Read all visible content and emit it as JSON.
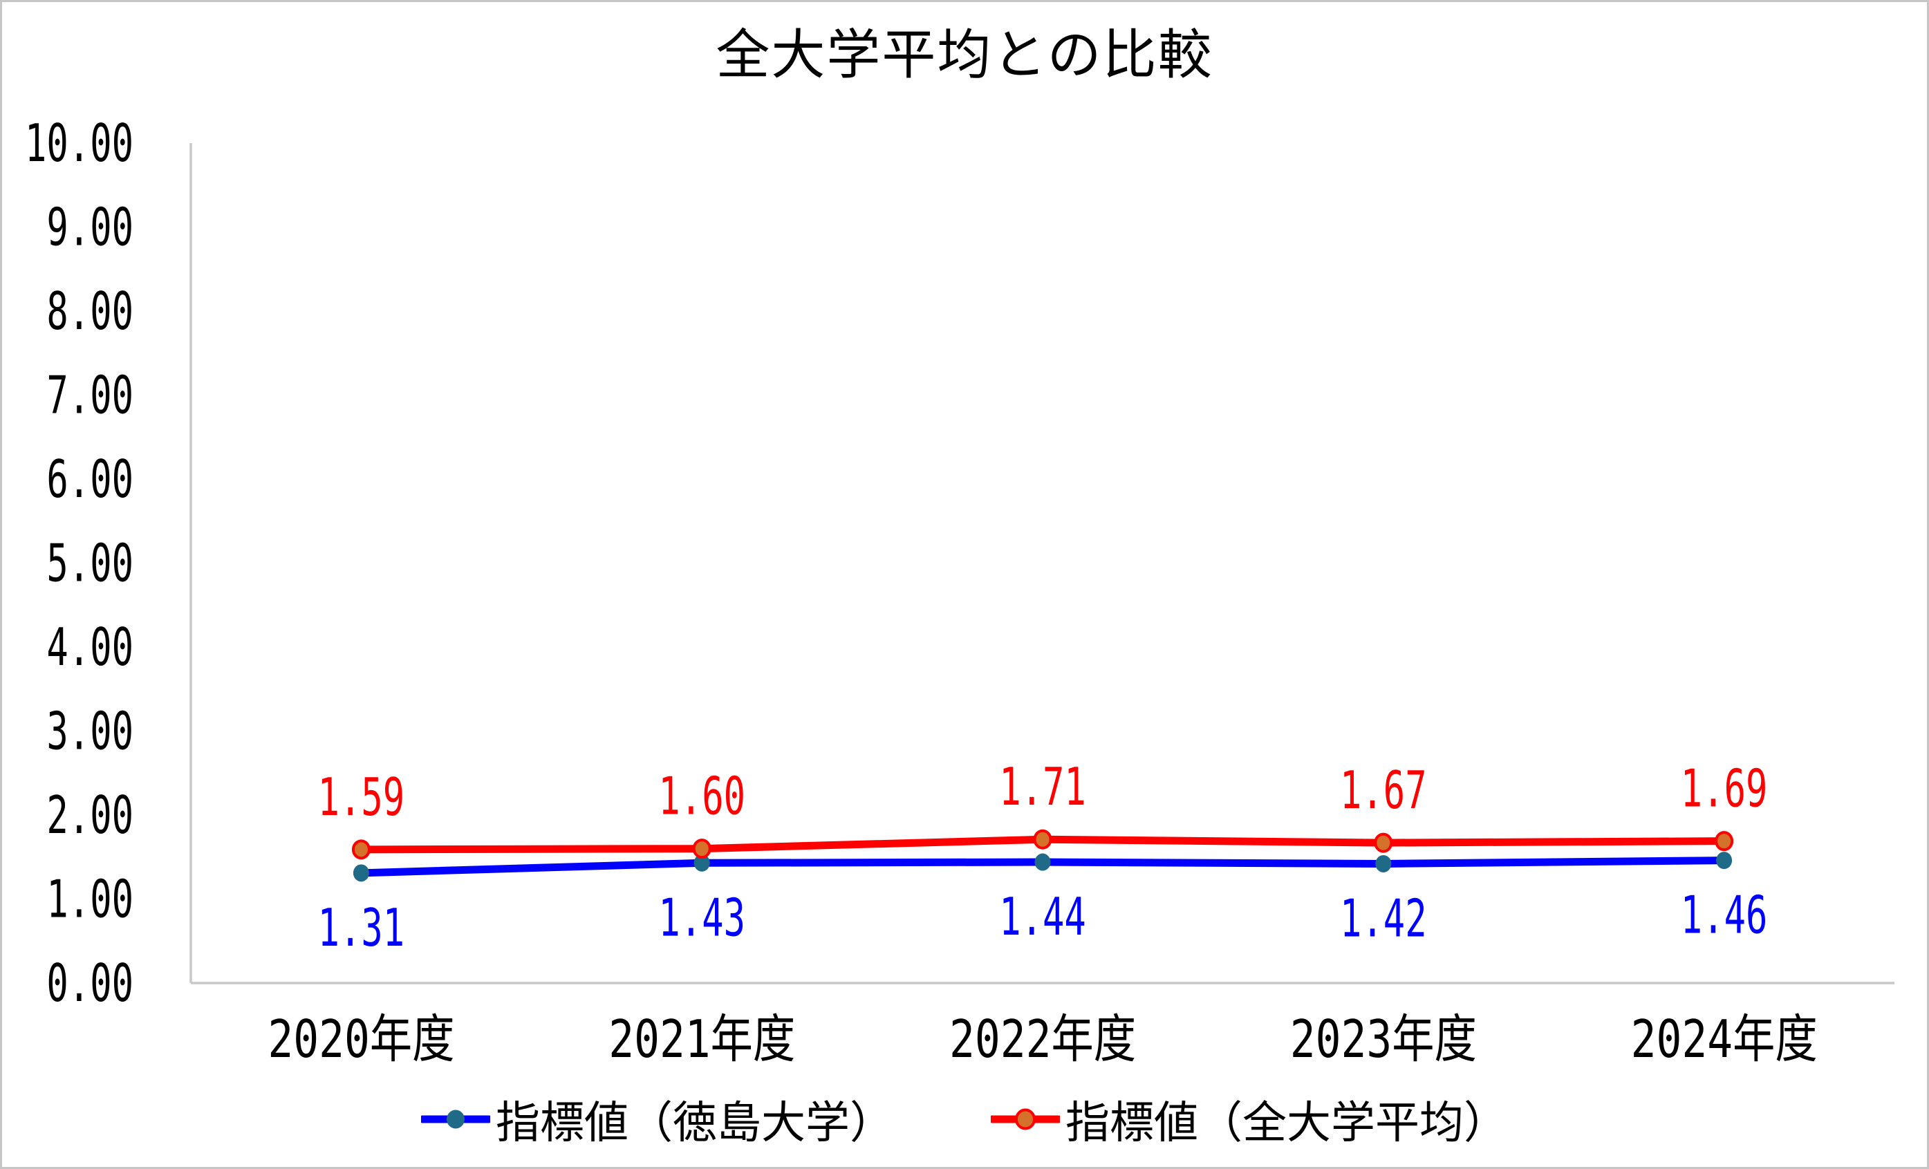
{
  "chart_data": {
    "type": "line",
    "title": "全大学平均との比較",
    "categories": [
      "2020年度",
      "2021年度",
      "2022年度",
      "2023年度",
      "2024年度"
    ],
    "series": [
      {
        "name": "指標値（徳島大学）",
        "values": [
          1.31,
          1.43,
          1.44,
          1.42,
          1.46
        ],
        "labels": [
          "1.31",
          "1.43",
          "1.44",
          "1.42",
          "1.46"
        ],
        "line_color": "#0000FF",
        "marker_color": "#1F6B87",
        "marker_outline": null,
        "label_color": "#0000FF",
        "label_position": "below"
      },
      {
        "name": "指標値（全大学平均）",
        "values": [
          1.59,
          1.6,
          1.71,
          1.67,
          1.69
        ],
        "labels": [
          "1.59",
          "1.60",
          "1.71",
          "1.67",
          "1.69"
        ],
        "line_color": "#FF0000",
        "marker_color": "#D4722C",
        "marker_outline": "#FF0000",
        "label_color": "#FF0000",
        "label_position": "above"
      }
    ],
    "y_axis": {
      "min": 0,
      "max": 10,
      "step": 1,
      "tick_labels": [
        "0.00",
        "1.00",
        "2.00",
        "3.00",
        "4.00",
        "5.00",
        "6.00",
        "7.00",
        "8.00",
        "9.00",
        "10.00"
      ]
    },
    "xlabel": "",
    "ylabel": "",
    "ylim": [
      0,
      10
    ],
    "grid": false,
    "legend_position": "bottom",
    "axis_line_color": "#C9C9C9",
    "background_color": "#FFFFFF",
    "text_color": "#000000"
  }
}
